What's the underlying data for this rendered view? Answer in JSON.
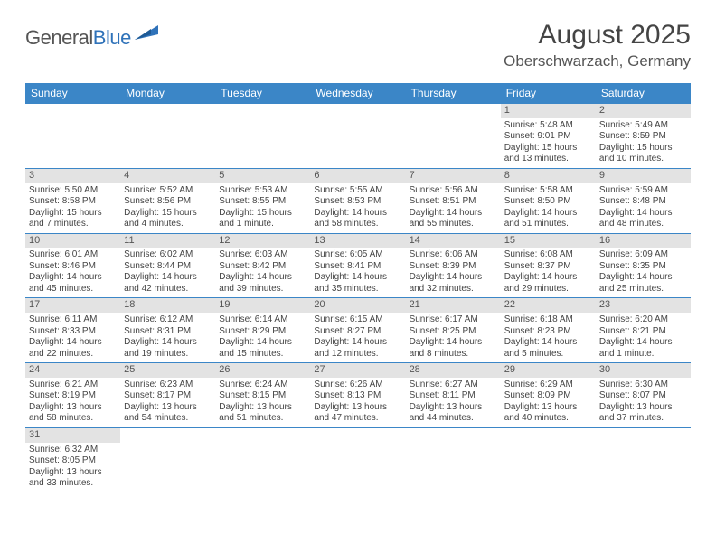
{
  "brand": {
    "word1": "General",
    "word2": "Blue"
  },
  "title": "August 2025",
  "location": "Oberschwarzach, Germany",
  "colors": {
    "header_bg": "#3b86c7",
    "header_text": "#ffffff",
    "daynum_bg": "#e3e3e3",
    "row_border": "#3b86c7",
    "text": "#444444",
    "brand_gray": "#555555",
    "brand_blue": "#2f72b9"
  },
  "dow": [
    "Sunday",
    "Monday",
    "Tuesday",
    "Wednesday",
    "Thursday",
    "Friday",
    "Saturday"
  ],
  "weeks": [
    [
      {
        "n": "",
        "empty": true
      },
      {
        "n": "",
        "empty": true
      },
      {
        "n": "",
        "empty": true
      },
      {
        "n": "",
        "empty": true
      },
      {
        "n": "",
        "empty": true
      },
      {
        "n": "1",
        "sunrise": "Sunrise: 5:48 AM",
        "sunset": "Sunset: 9:01 PM",
        "dl1": "Daylight: 15 hours",
        "dl2": "and 13 minutes."
      },
      {
        "n": "2",
        "sunrise": "Sunrise: 5:49 AM",
        "sunset": "Sunset: 8:59 PM",
        "dl1": "Daylight: 15 hours",
        "dl2": "and 10 minutes."
      }
    ],
    [
      {
        "n": "3",
        "sunrise": "Sunrise: 5:50 AM",
        "sunset": "Sunset: 8:58 PM",
        "dl1": "Daylight: 15 hours",
        "dl2": "and 7 minutes."
      },
      {
        "n": "4",
        "sunrise": "Sunrise: 5:52 AM",
        "sunset": "Sunset: 8:56 PM",
        "dl1": "Daylight: 15 hours",
        "dl2": "and 4 minutes."
      },
      {
        "n": "5",
        "sunrise": "Sunrise: 5:53 AM",
        "sunset": "Sunset: 8:55 PM",
        "dl1": "Daylight: 15 hours",
        "dl2": "and 1 minute."
      },
      {
        "n": "6",
        "sunrise": "Sunrise: 5:55 AM",
        "sunset": "Sunset: 8:53 PM",
        "dl1": "Daylight: 14 hours",
        "dl2": "and 58 minutes."
      },
      {
        "n": "7",
        "sunrise": "Sunrise: 5:56 AM",
        "sunset": "Sunset: 8:51 PM",
        "dl1": "Daylight: 14 hours",
        "dl2": "and 55 minutes."
      },
      {
        "n": "8",
        "sunrise": "Sunrise: 5:58 AM",
        "sunset": "Sunset: 8:50 PM",
        "dl1": "Daylight: 14 hours",
        "dl2": "and 51 minutes."
      },
      {
        "n": "9",
        "sunrise": "Sunrise: 5:59 AM",
        "sunset": "Sunset: 8:48 PM",
        "dl1": "Daylight: 14 hours",
        "dl2": "and 48 minutes."
      }
    ],
    [
      {
        "n": "10",
        "sunrise": "Sunrise: 6:01 AM",
        "sunset": "Sunset: 8:46 PM",
        "dl1": "Daylight: 14 hours",
        "dl2": "and 45 minutes."
      },
      {
        "n": "11",
        "sunrise": "Sunrise: 6:02 AM",
        "sunset": "Sunset: 8:44 PM",
        "dl1": "Daylight: 14 hours",
        "dl2": "and 42 minutes."
      },
      {
        "n": "12",
        "sunrise": "Sunrise: 6:03 AM",
        "sunset": "Sunset: 8:42 PM",
        "dl1": "Daylight: 14 hours",
        "dl2": "and 39 minutes."
      },
      {
        "n": "13",
        "sunrise": "Sunrise: 6:05 AM",
        "sunset": "Sunset: 8:41 PM",
        "dl1": "Daylight: 14 hours",
        "dl2": "and 35 minutes."
      },
      {
        "n": "14",
        "sunrise": "Sunrise: 6:06 AM",
        "sunset": "Sunset: 8:39 PM",
        "dl1": "Daylight: 14 hours",
        "dl2": "and 32 minutes."
      },
      {
        "n": "15",
        "sunrise": "Sunrise: 6:08 AM",
        "sunset": "Sunset: 8:37 PM",
        "dl1": "Daylight: 14 hours",
        "dl2": "and 29 minutes."
      },
      {
        "n": "16",
        "sunrise": "Sunrise: 6:09 AM",
        "sunset": "Sunset: 8:35 PM",
        "dl1": "Daylight: 14 hours",
        "dl2": "and 25 minutes."
      }
    ],
    [
      {
        "n": "17",
        "sunrise": "Sunrise: 6:11 AM",
        "sunset": "Sunset: 8:33 PM",
        "dl1": "Daylight: 14 hours",
        "dl2": "and 22 minutes."
      },
      {
        "n": "18",
        "sunrise": "Sunrise: 6:12 AM",
        "sunset": "Sunset: 8:31 PM",
        "dl1": "Daylight: 14 hours",
        "dl2": "and 19 minutes."
      },
      {
        "n": "19",
        "sunrise": "Sunrise: 6:14 AM",
        "sunset": "Sunset: 8:29 PM",
        "dl1": "Daylight: 14 hours",
        "dl2": "and 15 minutes."
      },
      {
        "n": "20",
        "sunrise": "Sunrise: 6:15 AM",
        "sunset": "Sunset: 8:27 PM",
        "dl1": "Daylight: 14 hours",
        "dl2": "and 12 minutes."
      },
      {
        "n": "21",
        "sunrise": "Sunrise: 6:17 AM",
        "sunset": "Sunset: 8:25 PM",
        "dl1": "Daylight: 14 hours",
        "dl2": "and 8 minutes."
      },
      {
        "n": "22",
        "sunrise": "Sunrise: 6:18 AM",
        "sunset": "Sunset: 8:23 PM",
        "dl1": "Daylight: 14 hours",
        "dl2": "and 5 minutes."
      },
      {
        "n": "23",
        "sunrise": "Sunrise: 6:20 AM",
        "sunset": "Sunset: 8:21 PM",
        "dl1": "Daylight: 14 hours",
        "dl2": "and 1 minute."
      }
    ],
    [
      {
        "n": "24",
        "sunrise": "Sunrise: 6:21 AM",
        "sunset": "Sunset: 8:19 PM",
        "dl1": "Daylight: 13 hours",
        "dl2": "and 58 minutes."
      },
      {
        "n": "25",
        "sunrise": "Sunrise: 6:23 AM",
        "sunset": "Sunset: 8:17 PM",
        "dl1": "Daylight: 13 hours",
        "dl2": "and 54 minutes."
      },
      {
        "n": "26",
        "sunrise": "Sunrise: 6:24 AM",
        "sunset": "Sunset: 8:15 PM",
        "dl1": "Daylight: 13 hours",
        "dl2": "and 51 minutes."
      },
      {
        "n": "27",
        "sunrise": "Sunrise: 6:26 AM",
        "sunset": "Sunset: 8:13 PM",
        "dl1": "Daylight: 13 hours",
        "dl2": "and 47 minutes."
      },
      {
        "n": "28",
        "sunrise": "Sunrise: 6:27 AM",
        "sunset": "Sunset: 8:11 PM",
        "dl1": "Daylight: 13 hours",
        "dl2": "and 44 minutes."
      },
      {
        "n": "29",
        "sunrise": "Sunrise: 6:29 AM",
        "sunset": "Sunset: 8:09 PM",
        "dl1": "Daylight: 13 hours",
        "dl2": "and 40 minutes."
      },
      {
        "n": "30",
        "sunrise": "Sunrise: 6:30 AM",
        "sunset": "Sunset: 8:07 PM",
        "dl1": "Daylight: 13 hours",
        "dl2": "and 37 minutes."
      }
    ],
    [
      {
        "n": "31",
        "sunrise": "Sunrise: 6:32 AM",
        "sunset": "Sunset: 8:05 PM",
        "dl1": "Daylight: 13 hours",
        "dl2": "and 33 minutes."
      },
      {
        "n": "",
        "empty": true
      },
      {
        "n": "",
        "empty": true
      },
      {
        "n": "",
        "empty": true
      },
      {
        "n": "",
        "empty": true
      },
      {
        "n": "",
        "empty": true
      },
      {
        "n": "",
        "empty": true
      }
    ]
  ]
}
